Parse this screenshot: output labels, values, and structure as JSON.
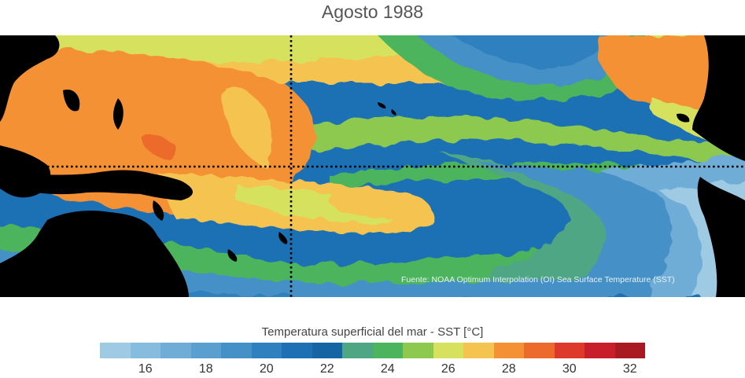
{
  "title": "Agosto 1988",
  "source": "Fuente: NOAA Optimum Interpolation (OI) Sea Surface Temperature (SST)",
  "colorbar": {
    "title": "Temperatura superficial del mar - SST  [°C]",
    "min": 15,
    "max": 33,
    "step": 1,
    "colors": [
      "#9ecbe3",
      "#86bcdd",
      "#6fadd6",
      "#5a9fcf",
      "#4590c6",
      "#2f80be",
      "#1d70b4",
      "#1565a5",
      "#4fa685",
      "#4cb45c",
      "#8ec94f",
      "#d6e25d",
      "#f5c34f",
      "#f59135",
      "#ec6a2c",
      "#dd3a2b",
      "#c81e2b",
      "#a81922"
    ],
    "ticks": [
      "16",
      "18",
      "20",
      "22",
      "24",
      "26",
      "28",
      "30",
      "32"
    ]
  },
  "map": {
    "land_color": "#000000",
    "reference_lines": [
      "equator",
      "dateline"
    ]
  }
}
